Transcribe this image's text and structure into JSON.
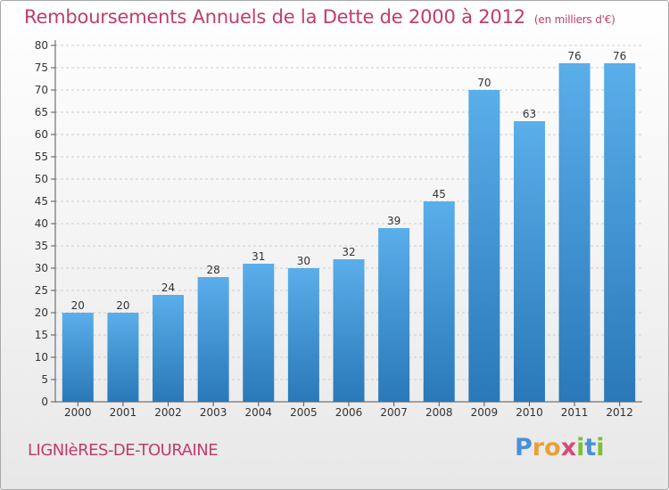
{
  "title": "Remboursements Annuels de la Dette de 2000 à 2012",
  "subtitle": "(en milliers d'€)",
  "commune": "LIGNIèRES-DE-TOURAINE",
  "brand": {
    "letters": [
      {
        "ch": "P",
        "color": "#4a90d9"
      },
      {
        "ch": "r",
        "color": "#e8a13a"
      },
      {
        "ch": "o",
        "color": "#e8a13a"
      },
      {
        "ch": "x",
        "color": "#d44a7a"
      },
      {
        "ch": "i",
        "color": "#7bbf3a"
      },
      {
        "ch": "t",
        "color": "#4a90d9"
      },
      {
        "ch": "i",
        "color": "#7bbf3a"
      }
    ]
  },
  "colors": {
    "title": "#c23b6e",
    "bar_top": "#5aaeea",
    "bar_bottom": "#2a78b8",
    "grid": "#cccccc"
  },
  "chart_data": {
    "type": "bar",
    "categories": [
      "2000",
      "2001",
      "2002",
      "2003",
      "2004",
      "2005",
      "2006",
      "2007",
      "2008",
      "2009",
      "2010",
      "2011",
      "2012"
    ],
    "values": [
      20,
      20,
      24,
      28,
      31,
      30,
      32,
      39,
      45,
      70,
      63,
      76,
      76
    ],
    "ylim": [
      0,
      80
    ],
    "yticks": [
      0,
      5,
      10,
      15,
      20,
      25,
      30,
      35,
      40,
      45,
      50,
      55,
      60,
      65,
      70,
      75,
      80
    ],
    "grid": "horizontal dashed",
    "title": "Remboursements Annuels de la Dette de 2000 à 2012",
    "xlabel": "",
    "ylabel": ""
  }
}
